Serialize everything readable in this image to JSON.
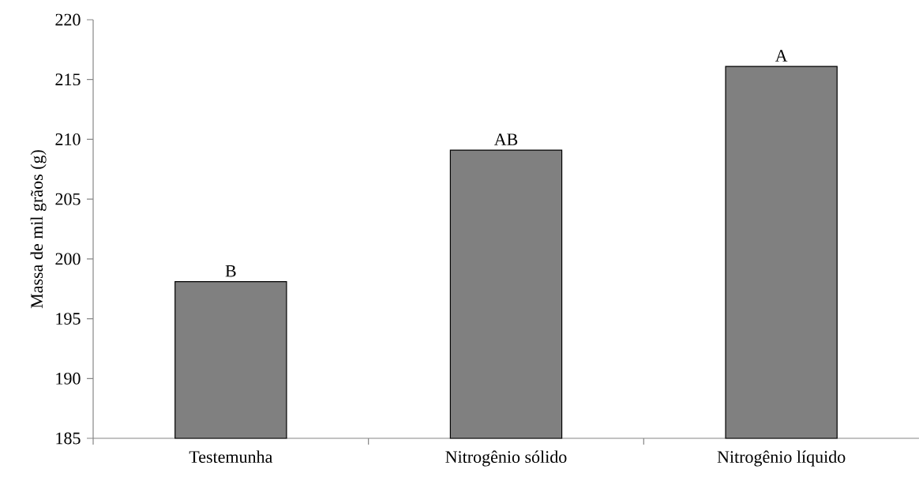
{
  "chart_data": {
    "type": "bar",
    "ylabel": "Massa de mil grãos (g)",
    "categories": [
      "Testemunha",
      "Nitrogênio sólido",
      "Nitrogênio líquido"
    ],
    "values": [
      198.1,
      209.1,
      216.1
    ],
    "color": "#808080",
    "ylim": [
      185,
      220
    ],
    "yticks": [
      185,
      190,
      195,
      200,
      205,
      210,
      215,
      220
    ],
    "annotations": [
      {
        "text": "B",
        "x": "Testemunha",
        "y": 198.1
      },
      {
        "text": "AB",
        "x": "Nitrogênio sólido",
        "y": 209.1
      },
      {
        "text": "A",
        "x": "Nitrogênio líquido",
        "y": 216.1
      }
    ],
    "grid": false
  }
}
